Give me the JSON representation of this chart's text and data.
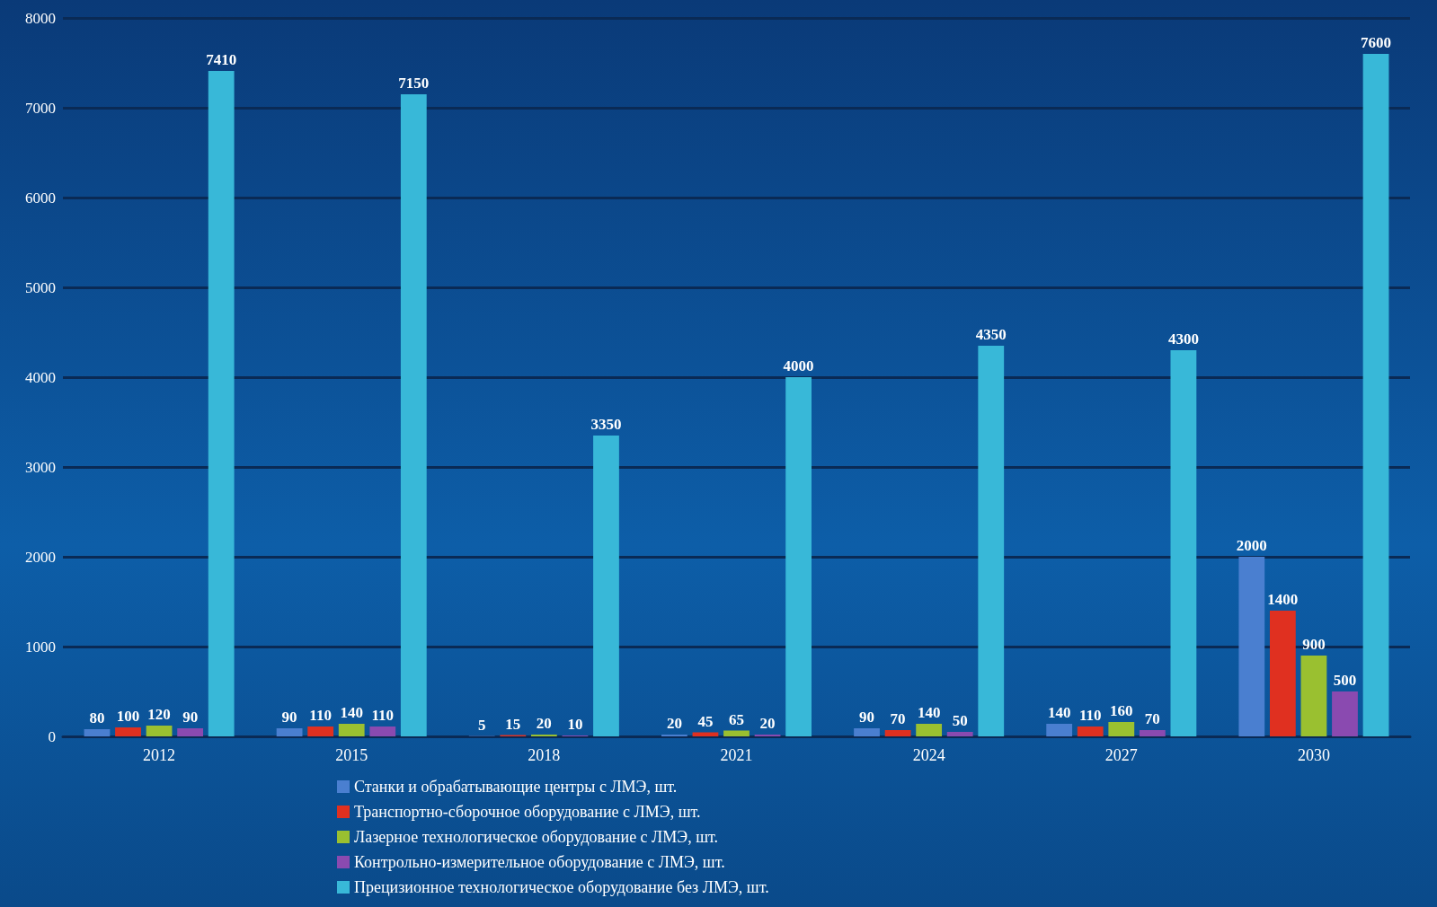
{
  "chart_data": {
    "type": "bar",
    "categories": [
      "2012",
      "2015",
      "2018",
      "2021",
      "2024",
      "2027",
      "2030"
    ],
    "series": [
      {
        "name": "Станки и обрабатывающие центры с ЛМЭ, шт.",
        "color": "#4a7fd0",
        "values": [
          80,
          90,
          5,
          20,
          90,
          140,
          2000
        ]
      },
      {
        "name": "Транспортно-сборочное оборудование с ЛМЭ, шт.",
        "color": "#e03020",
        "values": [
          100,
          110,
          15,
          45,
          70,
          110,
          1400
        ]
      },
      {
        "name": "Лазерное технологическое оборудование с ЛМЭ, шт.",
        "color": "#9ac030",
        "values": [
          120,
          140,
          20,
          65,
          140,
          160,
          900
        ]
      },
      {
        "name": "Контрольно-измерительное оборудование с ЛМЭ, шт.",
        "color": "#8a4ab0",
        "values": [
          90,
          110,
          10,
          20,
          50,
          70,
          500
        ]
      },
      {
        "name": "Прецизионное технологическое оборудование без ЛМЭ, шт.",
        "color": "#38b8d8",
        "values": [
          7410,
          7150,
          3350,
          4000,
          4350,
          4300,
          7600
        ]
      }
    ],
    "ylim": [
      0,
      8000
    ],
    "yticks": [
      0,
      1000,
      2000,
      3000,
      4000,
      5000,
      6000,
      7000,
      8000
    ],
    "grid": "y",
    "legend": "bottom",
    "data_labels": true
  }
}
